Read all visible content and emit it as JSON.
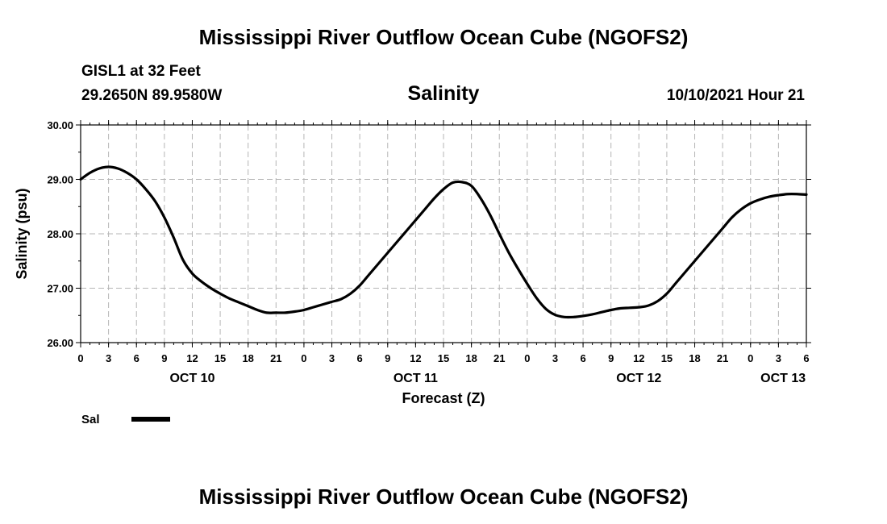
{
  "header": {
    "title": "Mississippi River Outflow Ocean Cube (NGOFS2)",
    "station": "GISL1 at 32 Feet",
    "coords": "29.2650N  89.9580W",
    "timestamp": "10/10/2021 Hour 21"
  },
  "footer": {
    "title": "Mississippi River Outflow Ocean Cube (NGOFS2)"
  },
  "chart_data": {
    "type": "line",
    "title": "Salinity",
    "xlabel": "Forecast (Z)",
    "ylabel": "Salinity (psu)",
    "ylim": [
      26.0,
      30.0
    ],
    "yticks": [
      "26.00",
      "27.00",
      "28.00",
      "29.00",
      "30.00"
    ],
    "xlim_hours": [
      0,
      78
    ],
    "xtick_labels": [
      "0",
      "3",
      "6",
      "9",
      "12",
      "15",
      "18",
      "21",
      "0",
      "3",
      "6",
      "9",
      "12",
      "15",
      "18",
      "21",
      "0",
      "3",
      "6",
      "9",
      "12",
      "15",
      "18",
      "21",
      "0",
      "3",
      "6"
    ],
    "day_labels": [
      {
        "label": "OCT 10",
        "hour": 12
      },
      {
        "label": "OCT 11",
        "hour": 36
      },
      {
        "label": "OCT 12",
        "hour": 60
      },
      {
        "label": "OCT 13",
        "hour": 75.5
      }
    ],
    "grid": true,
    "legend_position": "bottom-left",
    "series": [
      {
        "name": "Sal",
        "color": "#000000",
        "x": [
          0,
          1,
          2,
          3,
          4,
          5,
          6,
          7,
          8,
          9,
          10,
          11,
          12,
          13,
          14,
          15,
          16,
          17,
          18,
          19,
          20,
          21,
          22,
          23,
          24,
          25,
          26,
          27,
          28,
          29,
          30,
          31,
          32,
          33,
          34,
          35,
          36,
          37,
          38,
          39,
          40,
          41,
          42,
          43,
          44,
          45,
          46,
          47,
          48,
          49,
          50,
          51,
          52,
          53,
          54,
          55,
          56,
          57,
          58,
          59,
          60,
          61,
          62,
          63,
          64,
          65,
          66,
          67,
          68,
          69,
          70,
          71,
          72,
          73,
          74,
          75,
          76,
          77,
          78
        ],
        "values": [
          29.0,
          29.12,
          29.2,
          29.23,
          29.2,
          29.12,
          29.0,
          28.82,
          28.6,
          28.3,
          27.93,
          27.52,
          27.27,
          27.12,
          27.0,
          26.9,
          26.81,
          26.74,
          26.67,
          26.6,
          26.55,
          26.55,
          26.55,
          26.57,
          26.6,
          26.65,
          26.7,
          26.75,
          26.8,
          26.9,
          27.05,
          27.25,
          27.45,
          27.65,
          27.85,
          28.05,
          28.25,
          28.45,
          28.65,
          28.82,
          28.94,
          28.95,
          28.88,
          28.65,
          28.35,
          28.0,
          27.66,
          27.36,
          27.08,
          26.82,
          26.62,
          26.51,
          26.47,
          26.47,
          26.49,
          26.52,
          26.56,
          26.6,
          26.63,
          26.64,
          26.65,
          26.68,
          26.76,
          26.9,
          27.1,
          27.3,
          27.5,
          27.7,
          27.9,
          28.1,
          28.3,
          28.45,
          28.56,
          28.63,
          28.68,
          28.71,
          28.73,
          28.73,
          28.72
        ]
      }
    ]
  }
}
